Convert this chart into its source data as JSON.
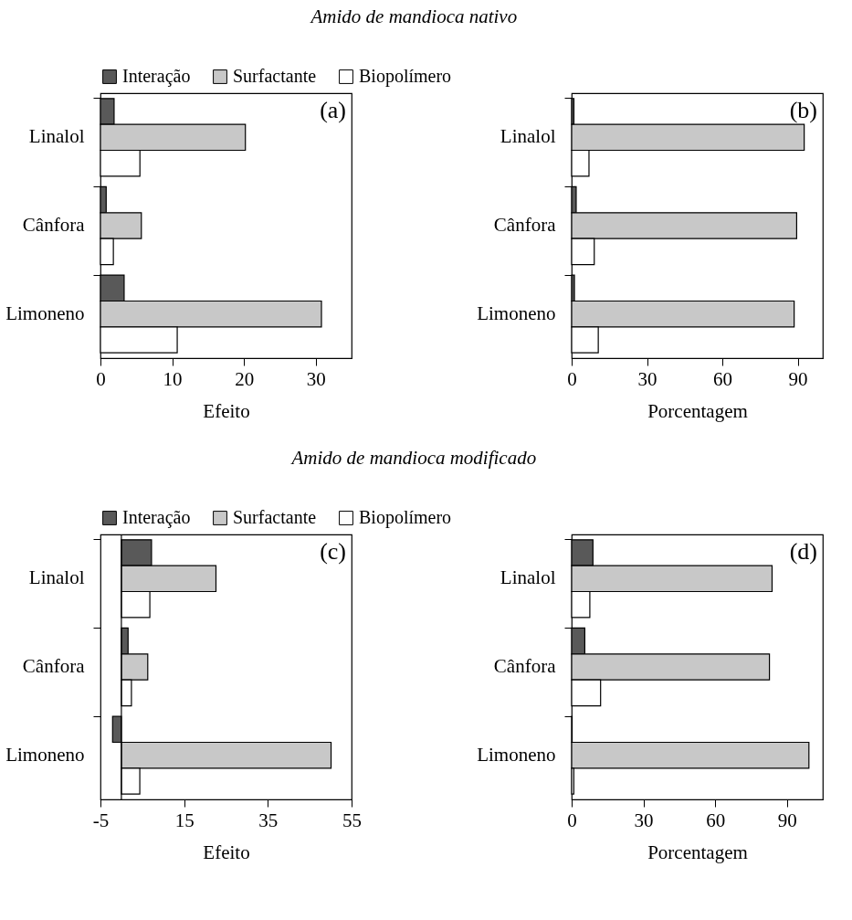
{
  "chart_data": [
    {
      "type": "bar",
      "orientation": "horizontal",
      "title": "Amido de mandioca nativo",
      "categories": [
        "Linalol",
        "Cânfora",
        "Limoneno"
      ],
      "series": [
        {
          "name": "Interação",
          "color": "#595959",
          "values": [
            1.9,
            0.8,
            3.3
          ]
        },
        {
          "name": "Surfactante",
          "color": "#c8c8c8",
          "values": [
            20.2,
            5.7,
            30.8
          ]
        },
        {
          "name": "Biopolímero",
          "color": "#ffffff",
          "values": [
            5.5,
            1.8,
            10.7
          ]
        }
      ],
      "xlim": [
        0,
        35
      ],
      "xticks": [
        0,
        10,
        20,
        30
      ],
      "xlabel": "Efeito",
      "legend": "top",
      "annotations": [
        "(a)"
      ]
    },
    {
      "type": "bar",
      "orientation": "horizontal",
      "categories": [
        "Linalol",
        "Cânfora",
        "Limoneno"
      ],
      "series": [
        {
          "color": "#595959",
          "values": [
            0.9,
            1.8,
            1.1
          ]
        },
        {
          "color": "#c8c8c8",
          "values": [
            92.6,
            89.6,
            88.6
          ]
        },
        {
          "color": "#ffffff",
          "values": [
            6.9,
            9.0,
            10.6
          ]
        }
      ],
      "xlim": [
        0,
        100
      ],
      "xticks": [
        0,
        30,
        60,
        90
      ],
      "xlabel": "Porcentagem",
      "annotations": [
        "(b)"
      ]
    },
    {
      "type": "bar",
      "orientation": "horizontal",
      "title": "Amido de mandioca modificado",
      "categories": [
        "Linalol",
        "Cânfora",
        "Limoneno"
      ],
      "series": [
        {
          "name": "Interação",
          "color": "#595959",
          "values": [
            7.2,
            1.6,
            -2.1
          ]
        },
        {
          "name": "Surfactante",
          "color": "#c8c8c8",
          "values": [
            22.6,
            6.3,
            50.1
          ]
        },
        {
          "name": "Biopolímero",
          "color": "#ffffff",
          "values": [
            6.8,
            2.4,
            4.4
          ]
        }
      ],
      "xlim": [
        -5,
        55
      ],
      "xticks": [
        -5,
        15,
        35,
        55
      ],
      "xlabel": "Efeito",
      "legend": "top",
      "annotations": [
        "(c)"
      ]
    },
    {
      "type": "bar",
      "orientation": "horizontal",
      "categories": [
        "Linalol",
        "Cânfora",
        "Limoneno"
      ],
      "series": [
        {
          "color": "#595959",
          "values": [
            8.9,
            5.5,
            0.2
          ]
        },
        {
          "color": "#c8c8c8",
          "values": [
            83.8,
            82.7,
            99.2
          ]
        },
        {
          "color": "#ffffff",
          "values": [
            7.6,
            12.1,
            0.9
          ]
        }
      ],
      "xlim": [
        0,
        105
      ],
      "xticks": [
        0,
        30,
        60,
        90
      ],
      "xlabel": "Porcentagem",
      "annotations": [
        "(d)"
      ]
    }
  ]
}
